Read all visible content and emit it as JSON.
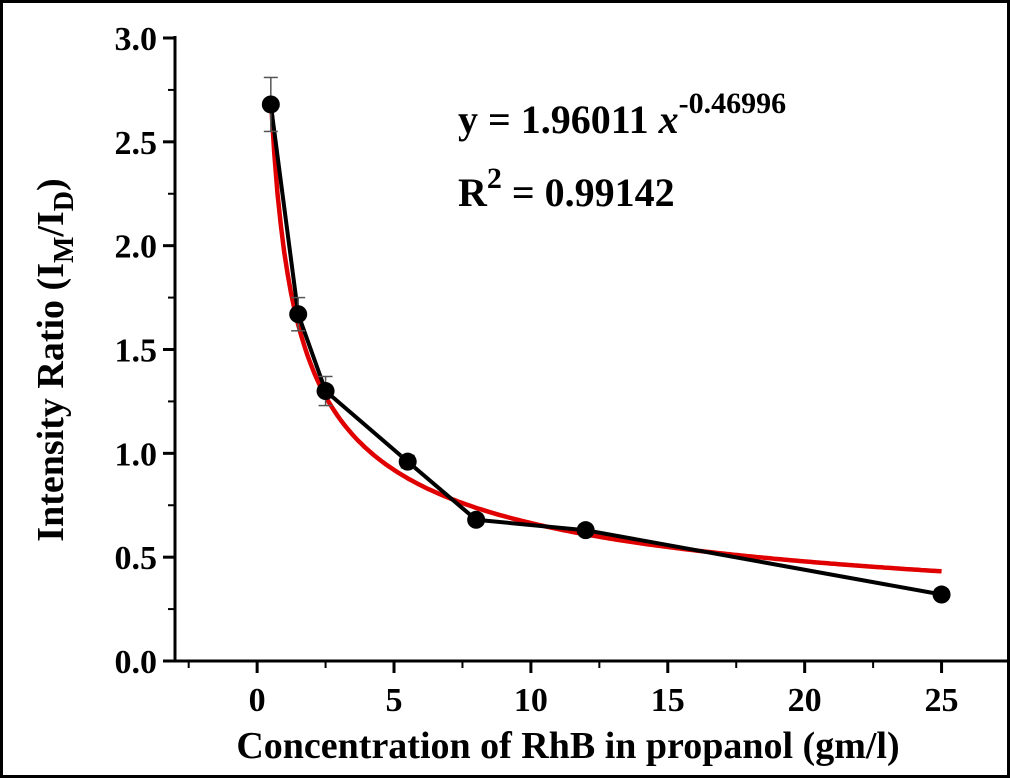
{
  "chart_data": {
    "type": "line",
    "xlabel": "Concentration of RhB in propanol (gm/l)",
    "ylabel": {
      "main": "Intensity Ratio (I",
      "sub1": "M",
      "mid": "/I",
      "sub2": "D",
      "end": ")"
    },
    "xlim": [
      -3,
      27.5
    ],
    "ylim": [
      0,
      3
    ],
    "x_ticks": [
      0,
      5,
      10,
      15,
      20,
      25
    ],
    "x_tick_labels": [
      "0",
      "5",
      "10",
      "15",
      "20",
      "25"
    ],
    "y_ticks": [
      0,
      0.5,
      1,
      1.5,
      2,
      2.5,
      3
    ],
    "y_tick_labels": [
      "0.0",
      "0.5",
      "1.0",
      "1.5",
      "2.0",
      "2.5",
      "3.0"
    ],
    "grid": false,
    "series": [
      {
        "kind": "data",
        "color": "#000000",
        "points": [
          {
            "x": 0.5,
            "y": 2.68,
            "err": 0.13
          },
          {
            "x": 1.5,
            "y": 1.67,
            "err": 0.08
          },
          {
            "x": 2.5,
            "y": 1.3,
            "err": 0.07
          },
          {
            "x": 5.5,
            "y": 0.96,
            "err": 0.03
          },
          {
            "x": 8.0,
            "y": 0.68,
            "err": 0.02
          },
          {
            "x": 12.0,
            "y": 0.63,
            "err": 0.02
          },
          {
            "x": 25.0,
            "y": 0.32,
            "err": 0.02
          }
        ]
      },
      {
        "kind": "fit",
        "color": "#e00000",
        "model": "power",
        "a": 1.96011,
        "b": -0.46996,
        "x_range": [
          0.5,
          25
        ]
      }
    ],
    "annotation": {
      "line1_prefix": "y = 1.96011 ",
      "line1_var": "x",
      "line1_exp": "-0.46996",
      "line2_base": "R",
      "line2_exp": "2",
      "line2_value": " = 0.99142"
    }
  }
}
